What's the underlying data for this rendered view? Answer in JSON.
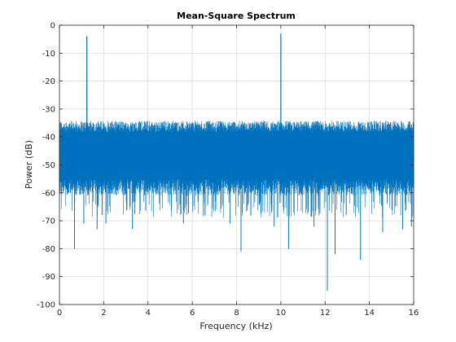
{
  "chart_data": {
    "type": "line",
    "title": "Mean-Square Spectrum",
    "xlabel": "Frequency (kHz)",
    "ylabel": "Power (dB)",
    "xlim": [
      0,
      16
    ],
    "ylim": [
      -100,
      0
    ],
    "xticks": [
      0,
      2,
      4,
      6,
      8,
      10,
      12,
      14,
      16
    ],
    "yticks": [
      0,
      -10,
      -20,
      -30,
      -40,
      -50,
      -60,
      -70,
      -80,
      -90,
      -100
    ],
    "grid": true,
    "line_color": "#0072BD",
    "noise_floor": {
      "typical_upper_db": -37,
      "typical_lower_db": -55,
      "upper_envelope_db": -34,
      "lower_envelope_db": -63
    },
    "series": [
      {
        "values_description": "",
        "peaks": [
          {
            "x": 1.24,
            "y": -4
          },
          {
            "x": 10.0,
            "y": -3
          }
        ],
        "deep_dips": [
          {
            "x": 0.68,
            "y": -80
          },
          {
            "x": 8.2,
            "y": -81
          },
          {
            "x": 10.35,
            "y": -80
          },
          {
            "x": 12.1,
            "y": -95
          },
          {
            "x": 12.45,
            "y": -82
          },
          {
            "x": 13.6,
            "y": -84
          },
          {
            "x": 1.1,
            "y": -71
          },
          {
            "x": 1.7,
            "y": -73
          },
          {
            "x": 2.1,
            "y": -71
          },
          {
            "x": 3.3,
            "y": -73
          },
          {
            "x": 5.6,
            "y": -71
          },
          {
            "x": 7.7,
            "y": -71
          },
          {
            "x": 9.7,
            "y": -72
          },
          {
            "x": 11.5,
            "y": -72
          },
          {
            "x": 14.6,
            "y": -74
          },
          {
            "x": 15.5,
            "y": -73
          },
          {
            "x": 15.9,
            "y": -72
          }
        ]
      }
    ]
  }
}
